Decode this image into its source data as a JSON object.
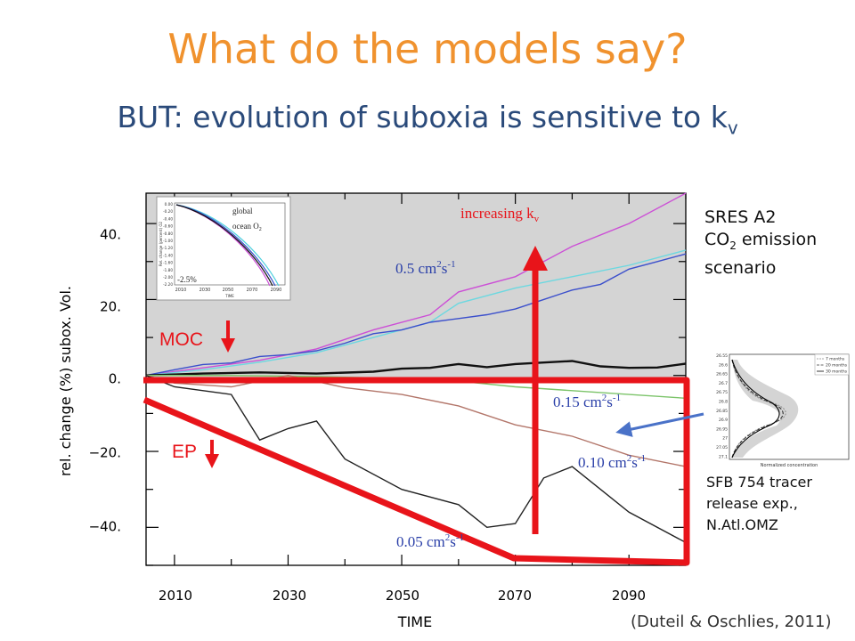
{
  "title": "What do the models say?",
  "subtitle": {
    "text": "BUT: evolution of suboxia is sensitive to k",
    "subscript": "v"
  },
  "scenario": {
    "line1": "SRES A2",
    "line2_prefix": "CO",
    "line2_sub": "2",
    "line2_suffix": " emission",
    "line3": "scenario"
  },
  "tracer_note": {
    "line1": "SFB 754 tracer",
    "line2": "release exp.,",
    "line3": "N.Atl.OMZ"
  },
  "citation": "(Duteil & Oschlies, 2011)",
  "annotations": {
    "increasing_kv_prefix": "increasing k",
    "increasing_kv_sub": "v",
    "moc": "MOC",
    "ep": "EP",
    "kv_05": "0.5 cm",
    "kv_015": "0.15 cm",
    "kv_010": "0.10 cm",
    "kv_005": "0.05 cm",
    "unit_sup1": "2",
    "unit_mid": "s",
    "unit_sup2": "-1"
  },
  "colors": {
    "title": "#f0922e",
    "subtitle": "#2a4a7a",
    "arrow_red": "#e8141a",
    "plot_bg": "#d4d4d4",
    "arrow_blue": "#4a72c8"
  },
  "inset": {
    "label_line1": "global",
    "label_line2": "ocean O",
    "label_sub": "2",
    "percent": "-2.5%",
    "yticks": [
      "0.00",
      "-0.20",
      "-0.40",
      "-0.60",
      "-0.80",
      "-1.00",
      "-1.20",
      "-1.40",
      "-1.60",
      "-1.80",
      "-2.00",
      "-2.20"
    ],
    "xticks": [
      "2010",
      "2030",
      "2050",
      "2070",
      "2090"
    ],
    "ylabel": "Rel. change (percent) O2",
    "xlabel": "TIME"
  },
  "tracer_plot": {
    "legend": [
      "7 months",
      "20 months",
      "30 months"
    ],
    "yticks": [
      "26.55",
      "26.6",
      "26.65",
      "26.7",
      "26.75",
      "26.8",
      "26.85",
      "26.9",
      "26.95",
      "27",
      "27.05",
      "27.1"
    ],
    "xlabel": "Normalized concentration"
  },
  "chart_data": {
    "type": "line",
    "title": "",
    "xlabel": "TIME",
    "ylabel": "rel. change (%) subox. Vol.",
    "xlim": [
      2005,
      2100
    ],
    "ylim": [
      -50,
      48
    ],
    "xticks": [
      "2010",
      "2030",
      "2050",
      "2070",
      "2090"
    ],
    "yticks": [
      "40.",
      "20.",
      "0.",
      "−20.",
      "−40."
    ],
    "ytick_values": [
      40,
      20,
      0,
      -20,
      -40
    ],
    "grid": false,
    "series": [
      {
        "name": "0.5 cm2s-1",
        "color": "#cc4fd6",
        "x": [
          2005,
          2015,
          2025,
          2035,
          2045,
          2055,
          2060,
          2070,
          2080,
          2090,
          2100
        ],
        "y": [
          0,
          2,
          4,
          7,
          12,
          16,
          22,
          26,
          34,
          40,
          48
        ]
      },
      {
        "color": "#6cd8e0",
        "x": [
          2005,
          2015,
          2025,
          2035,
          2045,
          2055,
          2060,
          2070,
          2080,
          2090,
          2100
        ],
        "y": [
          0,
          1.5,
          3.5,
          6,
          10,
          14,
          19,
          23,
          26,
          29,
          33
        ]
      },
      {
        "color": "#3b4fcc",
        "x": [
          2005,
          2010,
          2015,
          2020,
          2025,
          2030,
          2035,
          2040,
          2045,
          2050,
          2055,
          2060,
          2065,
          2070,
          2075,
          2080,
          2085,
          2090,
          2095,
          2100
        ],
        "y": [
          0,
          1.5,
          2.9,
          3.3,
          5.0,
          5.5,
          6.5,
          8.5,
          11.0,
          12.0,
          14.0,
          15.0,
          16.0,
          17.5,
          20.0,
          22.5,
          24.0,
          28.0,
          30.0,
          32.0
        ]
      },
      {
        "name": "0.15 cm2s-1",
        "color": "#111111",
        "x": [
          2005,
          2015,
          2025,
          2035,
          2045,
          2050,
          2055,
          2060,
          2065,
          2070,
          2075,
          2080,
          2085,
          2090,
          2095,
          2100
        ],
        "y": [
          0,
          0.5,
          0.8,
          0.5,
          1.0,
          1.8,
          2.0,
          3.0,
          2.2,
          3.0,
          3.4,
          3.8,
          2.4,
          2.0,
          2.1,
          3.1
        ]
      },
      {
        "color": "#7cc46a",
        "x": [
          2005,
          2020,
          2035,
          2050,
          2060,
          2070,
          2080,
          2090,
          2100
        ],
        "y": [
          0,
          0,
          -0.3,
          -0.8,
          -1.5,
          -3,
          -4,
          -5,
          -6
        ]
      },
      {
        "name": "0.10 cm2s-1",
        "color": "#b3766a",
        "x": [
          2005,
          2010,
          2020,
          2030,
          2040,
          2050,
          2060,
          2070,
          2080,
          2090,
          2100
        ],
        "y": [
          0,
          -2,
          -3,
          0,
          -3.2,
          -5,
          -8,
          -13,
          -16,
          -21,
          -24
        ]
      },
      {
        "name": "0.05 cm2s-1",
        "color": "#222222",
        "x": [
          2005,
          2010,
          2020,
          2025,
          2030,
          2035,
          2040,
          2050,
          2060,
          2065,
          2070,
          2075,
          2080,
          2090,
          2100
        ],
        "y": [
          0,
          -3,
          -5,
          -17,
          -14,
          -12,
          -22,
          -30,
          -34,
          -40,
          -39,
          -27,
          -24,
          -36,
          -44
        ]
      }
    ]
  }
}
